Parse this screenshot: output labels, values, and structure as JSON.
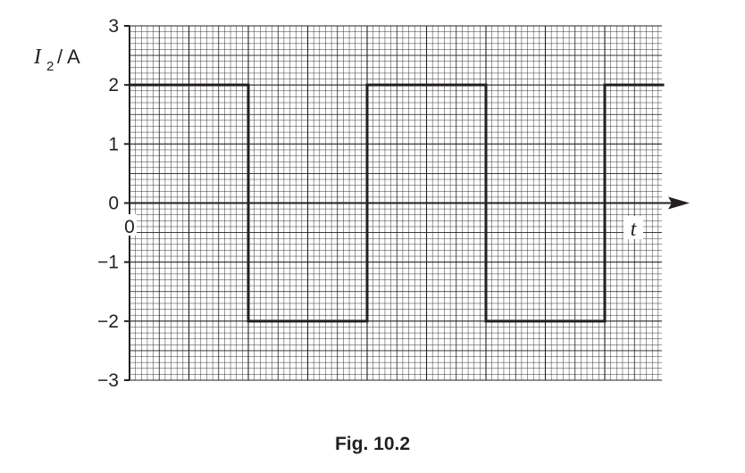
{
  "chart_data": {
    "type": "line",
    "title": "",
    "caption": "Fig. 10.2",
    "ylabel": {
      "symbol": "I",
      "subscript": "2",
      "unit": "/ A"
    },
    "xlabel": "t",
    "ylim": [
      -3,
      3
    ],
    "xlim": [
      0,
      4.5
    ],
    "yticks": [
      3,
      2,
      1,
      0,
      -1,
      -2,
      -3
    ],
    "yticklabels": [
      "3",
      "2",
      "1",
      "0",
      "−1",
      "−2",
      "−3"
    ],
    "origin_label": "0",
    "grid": true,
    "series": [
      {
        "x": [
          0,
          1,
          1,
          2,
          2,
          3,
          3,
          4,
          4,
          4.5
        ],
        "y": [
          2,
          2,
          -2,
          -2,
          2,
          2,
          -2,
          -2,
          2,
          2
        ]
      }
    ]
  }
}
